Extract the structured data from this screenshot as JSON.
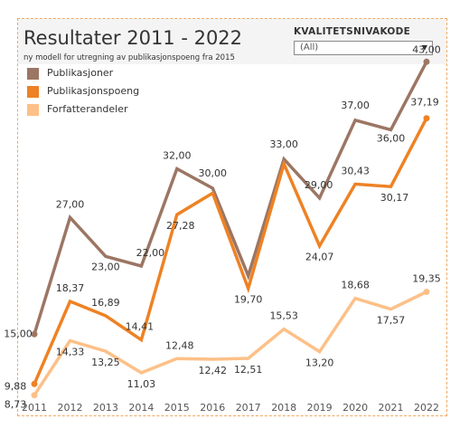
{
  "header": {
    "title": "Resultater 2011 - 2022",
    "subtitle": "ny modell for utregning av publikasjonspoeng fra 2015"
  },
  "filter": {
    "label": "KVALITETSNIVAKODE",
    "value": "(All)"
  },
  "colors": {
    "publikasjoner": "#9c7664",
    "publikasjonspoeng": "#ee8224",
    "forfatterandeler": "#fdc088",
    "border": "#f0a860"
  },
  "chart_data": {
    "type": "line",
    "categories": [
      "2011",
      "2012",
      "2013",
      "2014",
      "2015",
      "2016",
      "2017",
      "2018",
      "2019",
      "2020",
      "2021",
      "2022"
    ],
    "series": [
      {
        "name": "Publikasjoner",
        "values": [
          15,
          27,
          23,
          22,
          32,
          30,
          21,
          33,
          29,
          37,
          36,
          43
        ],
        "labels": [
          "15,00",
          "27,00",
          "23,00",
          "22,00",
          "32,00",
          "30,00",
          "",
          "33,00",
          "29,00",
          "37,00",
          "36,00",
          "43,00"
        ]
      },
      {
        "name": "Publikasjonspoeng",
        "values": [
          9.88,
          18.37,
          16.89,
          14.41,
          27.28,
          29.5,
          19.7,
          32.5,
          24.07,
          30.43,
          30.17,
          37.19
        ],
        "labels": [
          "9,88",
          "18,37",
          "16,89",
          "14,41",
          "27,28",
          "",
          "19,70",
          "",
          "24,07",
          "30,43",
          "30,17",
          "37,19"
        ]
      },
      {
        "name": "Forfatterandeler",
        "values": [
          8.73,
          14.33,
          13.25,
          11.03,
          12.48,
          12.42,
          12.51,
          15.53,
          13.2,
          18.68,
          17.57,
          19.35
        ],
        "labels": [
          "8,73",
          "14,33",
          "13,25",
          "11,03",
          "12,48",
          "12,42",
          "12,51",
          "15,53",
          "13,20",
          "18,68",
          "17,57",
          "19,35"
        ]
      }
    ],
    "legend_position": "top-left",
    "grid": false
  }
}
